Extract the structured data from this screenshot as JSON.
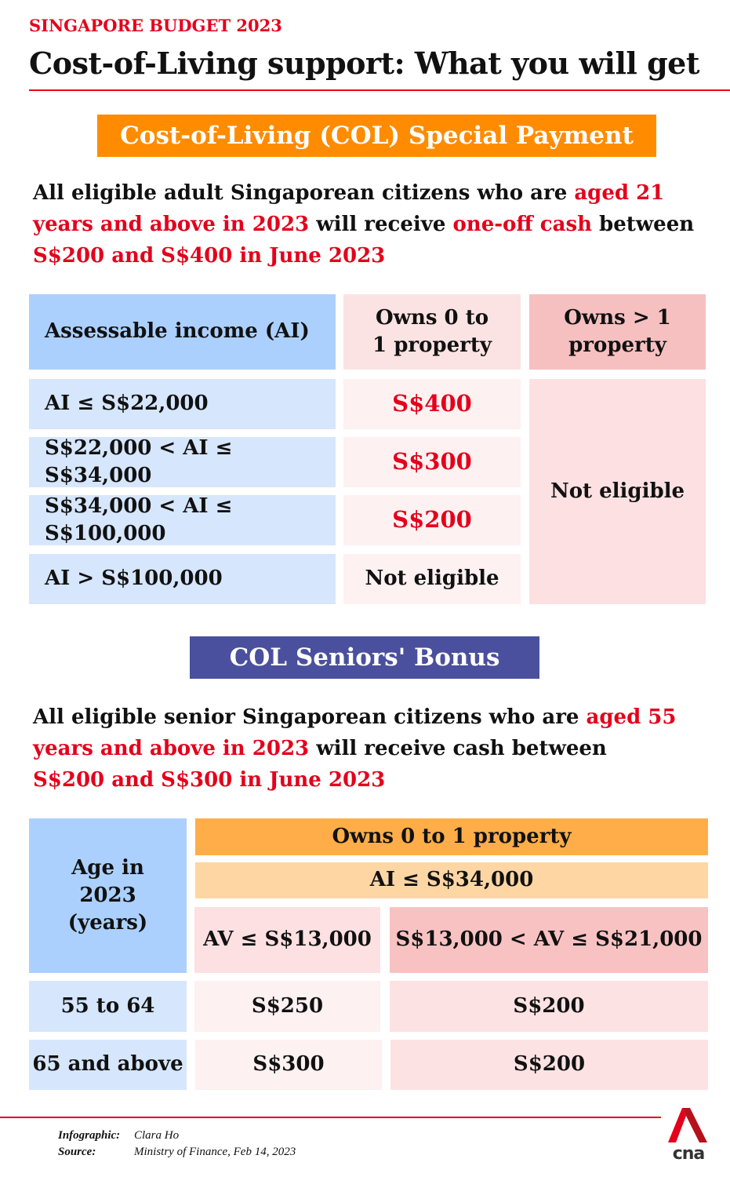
{
  "header": {
    "kicker": "SINGAPORE BUDGET 2023",
    "title": "Cost-of-Living support: What you will get"
  },
  "special_payment": {
    "banner": "Cost-of-Living (COL) Special Payment",
    "banner_color": "#ff8c00",
    "intro": {
      "t1": "All eligible adult Singaporean citizens who are ",
      "h1": "aged 21 years and above in 2023",
      "t2": " will receive ",
      "h2": "one-off cash",
      "t3": " between ",
      "h3": "S$200 and S$400 in June 2023"
    },
    "table": {
      "headers": [
        "Assessable income (AI)",
        "Owns 0 to 1 property",
        "Owns > 1 property"
      ],
      "rows": [
        {
          "income": "AI ≤ S$22,000",
          "amount": "S$400"
        },
        {
          "income": "S$22,000 < AI ≤ S$34,000",
          "amount": "S$300"
        },
        {
          "income": "S$34,000 < AI ≤ S$100,000",
          "amount": "S$200"
        },
        {
          "income": "AI > S$100,000",
          "amount": "Not eligible"
        }
      ],
      "multi_property": "Not eligible"
    }
  },
  "seniors_bonus": {
    "banner": "COL Seniors' Bonus",
    "banner_color": "#4a4f9e",
    "intro": {
      "t1": "All eligible senior Singaporean citizens who are ",
      "h1": "aged 55 years and above in 2023",
      "t2": " will receive cash between ",
      "h3": "S$200 and S$300 in June 2023"
    },
    "table": {
      "age_header": "Age in 2023 (years)",
      "property_header": "Owns 0 to 1 property",
      "income_header": "AI ≤ S$34,000",
      "av_headers": [
        "AV ≤ S$13,000",
        "S$13,000 < AV ≤ S$21,000"
      ],
      "rows": [
        {
          "age": "55 to 64",
          "low_av": "S$250",
          "high_av": "S$200"
        },
        {
          "age": "65 and above",
          "low_av": "S$300",
          "high_av": "S$200"
        }
      ]
    }
  },
  "footer": {
    "infographic_label": "Infographic:",
    "infographic_value": "Clara Ho",
    "source_label": "Source:",
    "source_value": "Ministry of Finance, Feb 14, 2023",
    "logo_text": "cna"
  }
}
